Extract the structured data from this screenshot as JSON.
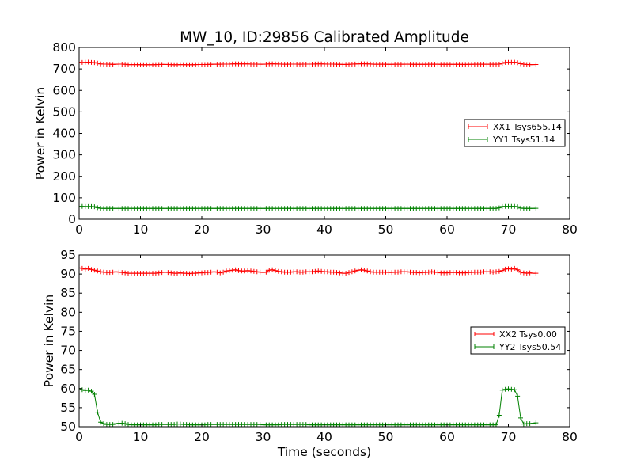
{
  "title": "MW_10, ID:29856 Calibrated Amplitude",
  "chart_data": [
    {
      "type": "line",
      "title": "MW_10, ID:29856 Calibrated Amplitude",
      "xlabel": "",
      "ylabel": "Power in Kelvin",
      "xlim": [
        0,
        80
      ],
      "ylim": [
        0,
        800
      ],
      "xticks": [
        0,
        10,
        20,
        30,
        40,
        50,
        60,
        70,
        80
      ],
      "yticks": [
        0,
        100,
        200,
        300,
        400,
        500,
        600,
        700,
        800
      ],
      "grid": false,
      "legend_position": "center-right",
      "marker": "+",
      "x": [
        0.0,
        0.5,
        1.0,
        1.5,
        2.0,
        2.5,
        3.0,
        3.5,
        4.0,
        4.5,
        5.0,
        5.5,
        6.0,
        6.5,
        7.0,
        7.5,
        8.0,
        8.5,
        9.0,
        9.5,
        10.0,
        10.5,
        11.0,
        11.5,
        12.0,
        12.5,
        13.0,
        13.5,
        14.0,
        14.5,
        15.0,
        15.5,
        16.0,
        16.5,
        17.0,
        17.5,
        18.0,
        18.5,
        19.0,
        19.5,
        20.0,
        20.5,
        21.0,
        21.5,
        22.0,
        22.5,
        23.0,
        23.5,
        24.0,
        24.5,
        25.0,
        25.5,
        26.0,
        26.5,
        27.0,
        27.5,
        28.0,
        28.5,
        29.0,
        29.5,
        30.0,
        30.5,
        31.0,
        31.5,
        32.0,
        32.5,
        33.0,
        33.5,
        34.0,
        34.5,
        35.0,
        35.5,
        36.0,
        36.5,
        37.0,
        37.5,
        38.0,
        38.5,
        39.0,
        39.5,
        40.0,
        40.5,
        41.0,
        41.5,
        42.0,
        42.5,
        43.0,
        43.5,
        44.0,
        44.5,
        45.0,
        45.5,
        46.0,
        46.5,
        47.0,
        47.5,
        48.0,
        48.5,
        49.0,
        49.5,
        50.0,
        50.5,
        51.0,
        51.5,
        52.0,
        52.5,
        53.0,
        53.5,
        54.0,
        54.5,
        55.0,
        55.5,
        56.0,
        56.5,
        57.0,
        57.5,
        58.0,
        58.5,
        59.0,
        59.5,
        60.0,
        60.5,
        61.0,
        61.5,
        62.0,
        62.5,
        63.0,
        63.5,
        64.0,
        64.5,
        65.0,
        65.5,
        66.0,
        66.5,
        67.0,
        67.5,
        68.0,
        68.5,
        69.0,
        69.5,
        70.0,
        70.5,
        71.0,
        71.5,
        72.0,
        72.5,
        73.0,
        73.5,
        74.0,
        74.5
      ],
      "series": [
        {
          "name": "XX1 Tsys655.14",
          "color": "#ff0000",
          "values": [
            731.5,
            730.4,
            730.8,
            731.9,
            730.4,
            729.5,
            727.4,
            723.6,
            722.6,
            722.5,
            722.0,
            721.2,
            722.0,
            722.4,
            722.4,
            721.5,
            720.4,
            720.2,
            720.2,
            720.2,
            720.0,
            719.7,
            719.6,
            719.8,
            719.9,
            720.3,
            720.7,
            721.0,
            721.2,
            720.9,
            720.3,
            719.8,
            720.0,
            720.3,
            720.1,
            719.8,
            719.6,
            719.9,
            720.4,
            720.8,
            720.9,
            720.9,
            721.0,
            721.6,
            722.1,
            722.0,
            722.0,
            722.4,
            722.7,
            722.8,
            723.4,
            724.0,
            723.6,
            723.5,
            723.7,
            723.3,
            722.8,
            722.6,
            722.5,
            722.3,
            722.2,
            722.4,
            723.3,
            723.9,
            723.6,
            723.0,
            722.5,
            722.3,
            722.3,
            722.5,
            722.6,
            722.4,
            722.3,
            722.5,
            722.6,
            722.6,
            722.8,
            723.2,
            723.5,
            723.3,
            723.0,
            722.8,
            722.6,
            722.4,
            722.1,
            721.8,
            721.4,
            721.2,
            721.6,
            722.4,
            723.0,
            723.6,
            724.1,
            724.1,
            723.6,
            722.9,
            722.3,
            722.2,
            722.2,
            722.1,
            721.9,
            721.8,
            721.8,
            721.9,
            722.0,
            722.1,
            722.3,
            722.4,
            722.1,
            721.8,
            721.6,
            721.5,
            721.6,
            721.8,
            722.1,
            722.3,
            722.2,
            721.9,
            721.6,
            721.5,
            721.5,
            721.6,
            721.8,
            721.7,
            721.5,
            721.4,
            721.4,
            721.5,
            721.8,
            722.0,
            722.1,
            722.0,
            722.0,
            722.2,
            722.2,
            722.1,
            722.3,
            722.8,
            726.3,
            730.3,
            731.1,
            730.7,
            731.3,
            729.2,
            724.5,
            722.3,
            720.9,
            720.4,
            720.1,
            720.6
          ]
        },
        {
          "name": "YY1 Tsys51.14",
          "color": "#008000",
          "values": [
            60.0,
            59.7,
            59.5,
            59.6,
            59.3,
            58.5,
            53.8,
            51.2,
            50.8,
            50.6,
            50.6,
            50.6,
            50.8,
            50.9,
            50.9,
            50.8,
            50.6,
            50.5,
            50.5,
            50.5,
            50.5,
            50.5,
            50.5,
            50.5,
            50.5,
            50.5,
            50.6,
            50.6,
            50.6,
            50.6,
            50.6,
            50.6,
            50.7,
            50.7,
            50.6,
            50.6,
            50.5,
            50.5,
            50.5,
            50.5,
            50.5,
            50.5,
            50.6,
            50.6,
            50.6,
            50.6,
            50.6,
            50.6,
            50.6,
            50.6,
            50.6,
            50.6,
            50.6,
            50.6,
            50.6,
            50.6,
            50.6,
            50.6,
            50.6,
            50.6,
            50.5,
            50.5,
            50.5,
            50.5,
            50.5,
            50.5,
            50.6,
            50.6,
            50.6,
            50.6,
            50.6,
            50.6,
            50.6,
            50.6,
            50.6,
            50.5,
            50.5,
            50.5,
            50.5,
            50.5,
            50.5,
            50.5,
            50.5,
            50.5,
            50.5,
            50.5,
            50.5,
            50.5,
            50.5,
            50.5,
            50.5,
            50.5,
            50.5,
            50.5,
            50.5,
            50.5,
            50.5,
            50.5,
            50.5,
            50.5,
            50.5,
            50.5,
            50.5,
            50.5,
            50.5,
            50.5,
            50.5,
            50.5,
            50.5,
            50.5,
            50.5,
            50.5,
            50.5,
            50.5,
            50.5,
            50.5,
            50.5,
            50.5,
            50.5,
            50.5,
            50.5,
            50.5,
            50.5,
            50.5,
            50.5,
            50.5,
            50.5,
            50.5,
            50.5,
            50.5,
            50.5,
            50.5,
            50.5,
            50.5,
            50.5,
            50.5,
            50.5,
            53.0,
            59.6,
            59.8,
            59.9,
            59.8,
            59.7,
            58.0,
            52.3,
            50.7,
            50.8,
            50.8,
            50.9,
            51.0
          ]
        }
      ]
    },
    {
      "type": "line",
      "title": "",
      "xlabel": "Time (seconds)",
      "ylabel": "Power in Kelvin",
      "xlim": [
        0,
        80
      ],
      "ylim": [
        50,
        95
      ],
      "xticks": [
        0,
        10,
        20,
        30,
        40,
        50,
        60,
        70,
        80
      ],
      "yticks": [
        50,
        55,
        60,
        65,
        70,
        75,
        80,
        85,
        90,
        95
      ],
      "grid": false,
      "legend_position": "center-right",
      "marker": "+",
      "x": [
        0.0,
        0.5,
        1.0,
        1.5,
        2.0,
        2.5,
        3.0,
        3.5,
        4.0,
        4.5,
        5.0,
        5.5,
        6.0,
        6.5,
        7.0,
        7.5,
        8.0,
        8.5,
        9.0,
        9.5,
        10.0,
        10.5,
        11.0,
        11.5,
        12.0,
        12.5,
        13.0,
        13.5,
        14.0,
        14.5,
        15.0,
        15.5,
        16.0,
        16.5,
        17.0,
        17.5,
        18.0,
        18.5,
        19.0,
        19.5,
        20.0,
        20.5,
        21.0,
        21.5,
        22.0,
        22.5,
        23.0,
        23.5,
        24.0,
        24.5,
        25.0,
        25.5,
        26.0,
        26.5,
        27.0,
        27.5,
        28.0,
        28.5,
        29.0,
        29.5,
        30.0,
        30.5,
        31.0,
        31.5,
        32.0,
        32.5,
        33.0,
        33.5,
        34.0,
        34.5,
        35.0,
        35.5,
        36.0,
        36.5,
        37.0,
        37.5,
        38.0,
        38.5,
        39.0,
        39.5,
        40.0,
        40.5,
        41.0,
        41.5,
        42.0,
        42.5,
        43.0,
        43.5,
        44.0,
        44.5,
        45.0,
        45.5,
        46.0,
        46.5,
        47.0,
        47.5,
        48.0,
        48.5,
        49.0,
        49.5,
        50.0,
        50.5,
        51.0,
        51.5,
        52.0,
        52.5,
        53.0,
        53.5,
        54.0,
        54.5,
        55.0,
        55.5,
        56.0,
        56.5,
        57.0,
        57.5,
        58.0,
        58.5,
        59.0,
        59.5,
        60.0,
        60.5,
        61.0,
        61.5,
        62.0,
        62.5,
        63.0,
        63.5,
        64.0,
        64.5,
        65.0,
        65.5,
        66.0,
        66.5,
        67.0,
        67.5,
        68.0,
        68.5,
        69.0,
        69.5,
        70.0,
        70.5,
        71.0,
        71.5,
        72.0,
        72.5,
        73.0,
        73.5,
        74.0,
        74.5
      ],
      "series": [
        {
          "name": "XX2 Tsys0.00",
          "color": "#ff0000",
          "values": [
            91.6,
            91.5,
            91.3,
            91.5,
            91.2,
            91.0,
            90.8,
            90.6,
            90.5,
            90.4,
            90.4,
            90.5,
            90.6,
            90.5,
            90.4,
            90.3,
            90.2,
            90.2,
            90.2,
            90.2,
            90.2,
            90.2,
            90.2,
            90.2,
            90.2,
            90.2,
            90.3,
            90.4,
            90.5,
            90.4,
            90.3,
            90.2,
            90.2,
            90.3,
            90.2,
            90.2,
            90.1,
            90.2,
            90.2,
            90.3,
            90.3,
            90.4,
            90.4,
            90.5,
            90.6,
            90.5,
            90.3,
            90.5,
            90.8,
            90.9,
            91.0,
            91.1,
            90.9,
            90.8,
            90.8,
            90.9,
            90.8,
            90.7,
            90.6,
            90.5,
            90.4,
            90.5,
            91.0,
            91.1,
            90.9,
            90.7,
            90.6,
            90.5,
            90.5,
            90.5,
            90.6,
            90.6,
            90.5,
            90.5,
            90.6,
            90.6,
            90.6,
            90.7,
            90.8,
            90.7,
            90.6,
            90.6,
            90.5,
            90.5,
            90.4,
            90.3,
            90.2,
            90.2,
            90.4,
            90.6,
            90.8,
            91.0,
            91.1,
            91.0,
            90.8,
            90.6,
            90.5,
            90.5,
            90.5,
            90.5,
            90.5,
            90.4,
            90.4,
            90.5,
            90.5,
            90.6,
            90.6,
            90.6,
            90.5,
            90.4,
            90.4,
            90.3,
            90.4,
            90.4,
            90.5,
            90.6,
            90.5,
            90.4,
            90.3,
            90.3,
            90.3,
            90.4,
            90.4,
            90.4,
            90.3,
            90.3,
            90.3,
            90.4,
            90.4,
            90.5,
            90.5,
            90.5,
            90.6,
            90.6,
            90.6,
            90.5,
            90.6,
            90.7,
            90.9,
            91.3,
            91.4,
            91.3,
            91.5,
            91.1,
            90.5,
            90.3,
            90.2,
            90.3,
            90.2,
            90.2
          ]
        },
        {
          "name": "YY2 Tsys50.54",
          "color": "#008000",
          "values": [
            60.0,
            59.7,
            59.5,
            59.6,
            59.3,
            58.5,
            53.8,
            51.2,
            50.8,
            50.6,
            50.6,
            50.6,
            50.8,
            50.9,
            50.9,
            50.8,
            50.6,
            50.5,
            50.5,
            50.5,
            50.5,
            50.5,
            50.5,
            50.5,
            50.5,
            50.5,
            50.6,
            50.6,
            50.6,
            50.6,
            50.6,
            50.6,
            50.7,
            50.7,
            50.6,
            50.6,
            50.5,
            50.5,
            50.5,
            50.5,
            50.5,
            50.5,
            50.6,
            50.6,
            50.6,
            50.6,
            50.6,
            50.6,
            50.6,
            50.6,
            50.6,
            50.6,
            50.6,
            50.6,
            50.6,
            50.6,
            50.6,
            50.6,
            50.6,
            50.6,
            50.5,
            50.5,
            50.5,
            50.5,
            50.5,
            50.5,
            50.6,
            50.6,
            50.6,
            50.6,
            50.6,
            50.6,
            50.6,
            50.6,
            50.6,
            50.5,
            50.5,
            50.5,
            50.5,
            50.5,
            50.5,
            50.5,
            50.5,
            50.5,
            50.5,
            50.5,
            50.5,
            50.5,
            50.5,
            50.5,
            50.5,
            50.5,
            50.5,
            50.5,
            50.5,
            50.5,
            50.5,
            50.5,
            50.5,
            50.5,
            50.5,
            50.5,
            50.5,
            50.5,
            50.5,
            50.5,
            50.5,
            50.5,
            50.5,
            50.5,
            50.5,
            50.5,
            50.5,
            50.5,
            50.5,
            50.5,
            50.5,
            50.5,
            50.5,
            50.5,
            50.5,
            50.5,
            50.5,
            50.5,
            50.5,
            50.5,
            50.5,
            50.5,
            50.5,
            50.5,
            50.5,
            50.5,
            50.5,
            50.5,
            50.5,
            50.5,
            50.5,
            53.0,
            59.6,
            59.8,
            59.9,
            59.8,
            59.7,
            58.0,
            52.3,
            50.7,
            50.8,
            50.8,
            50.9,
            51.0
          ]
        }
      ]
    }
  ]
}
